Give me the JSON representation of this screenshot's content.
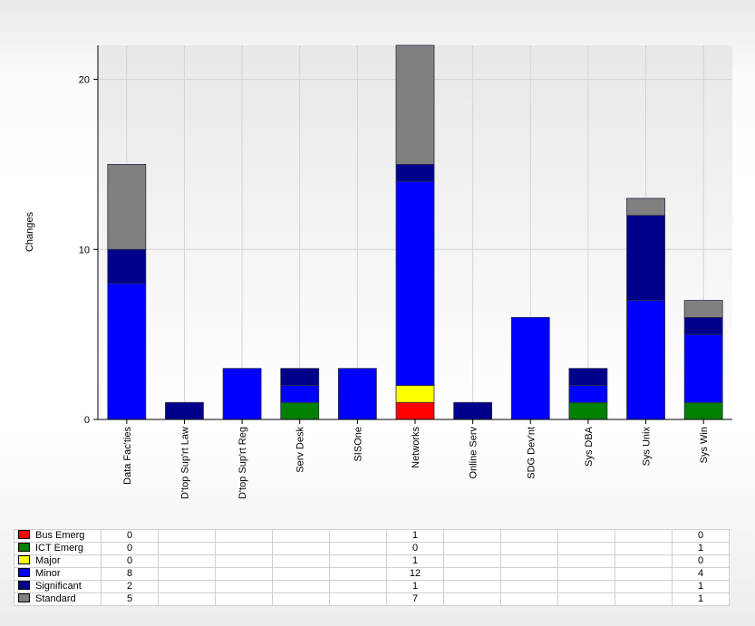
{
  "chart_data": {
    "type": "bar",
    "stacked": true,
    "ylabel": "Changes",
    "xlabel": "",
    "ylim": [
      0,
      22
    ],
    "yticks": [
      0,
      10,
      20
    ],
    "grid": true,
    "categories": [
      "Data Fac'ties",
      "D'top Sup'rt Law",
      "D'top Sup'rt Reg",
      "Serv Desk",
      "SISOne",
      "Networks",
      "Online Serv",
      "SDG Dev'nt",
      "Sys DBA",
      "Sys Unix",
      "Sys Win"
    ],
    "series": [
      {
        "name": "Bus Emerg",
        "color": "#ff0000",
        "values": [
          0,
          0,
          0,
          0,
          0,
          1,
          0,
          0,
          0,
          0,
          0
        ]
      },
      {
        "name": "ICT Emerg",
        "color": "#008000",
        "values": [
          0,
          0,
          0,
          1,
          0,
          0,
          0,
          0,
          1,
          0,
          1
        ]
      },
      {
        "name": "Major",
        "color": "#ffff00",
        "values": [
          0,
          0,
          0,
          0,
          0,
          1,
          0,
          0,
          0,
          0,
          0
        ]
      },
      {
        "name": "Minor",
        "color": "#0000ff",
        "values": [
          8,
          0,
          3,
          1,
          3,
          12,
          0,
          6,
          1,
          7,
          4
        ]
      },
      {
        "name": "Significant",
        "color": "#00008b",
        "values": [
          2,
          1,
          0,
          1,
          0,
          1,
          1,
          0,
          1,
          5,
          1
        ]
      },
      {
        "name": "Standard",
        "color": "#808080",
        "values": [
          5,
          0,
          0,
          0,
          0,
          7,
          0,
          0,
          0,
          1,
          1
        ]
      }
    ],
    "table": [
      [
        "0",
        "",
        "",
        "",
        "",
        "1",
        "",
        "",
        "",
        "",
        "0"
      ],
      [
        "0",
        "",
        "",
        "",
        "",
        "0",
        "",
        "",
        "",
        "",
        "1"
      ],
      [
        "0",
        "",
        "",
        "",
        "",
        "1",
        "",
        "",
        "",
        "",
        "0"
      ],
      [
        "8",
        "",
        "",
        "",
        "",
        "12",
        "",
        "",
        "",
        "",
        "4"
      ],
      [
        "2",
        "",
        "",
        "",
        "",
        "1",
        "",
        "",
        "",
        "",
        "1"
      ],
      [
        "5",
        "",
        "",
        "",
        "",
        "7",
        "",
        "",
        "",
        "",
        "1"
      ]
    ]
  }
}
